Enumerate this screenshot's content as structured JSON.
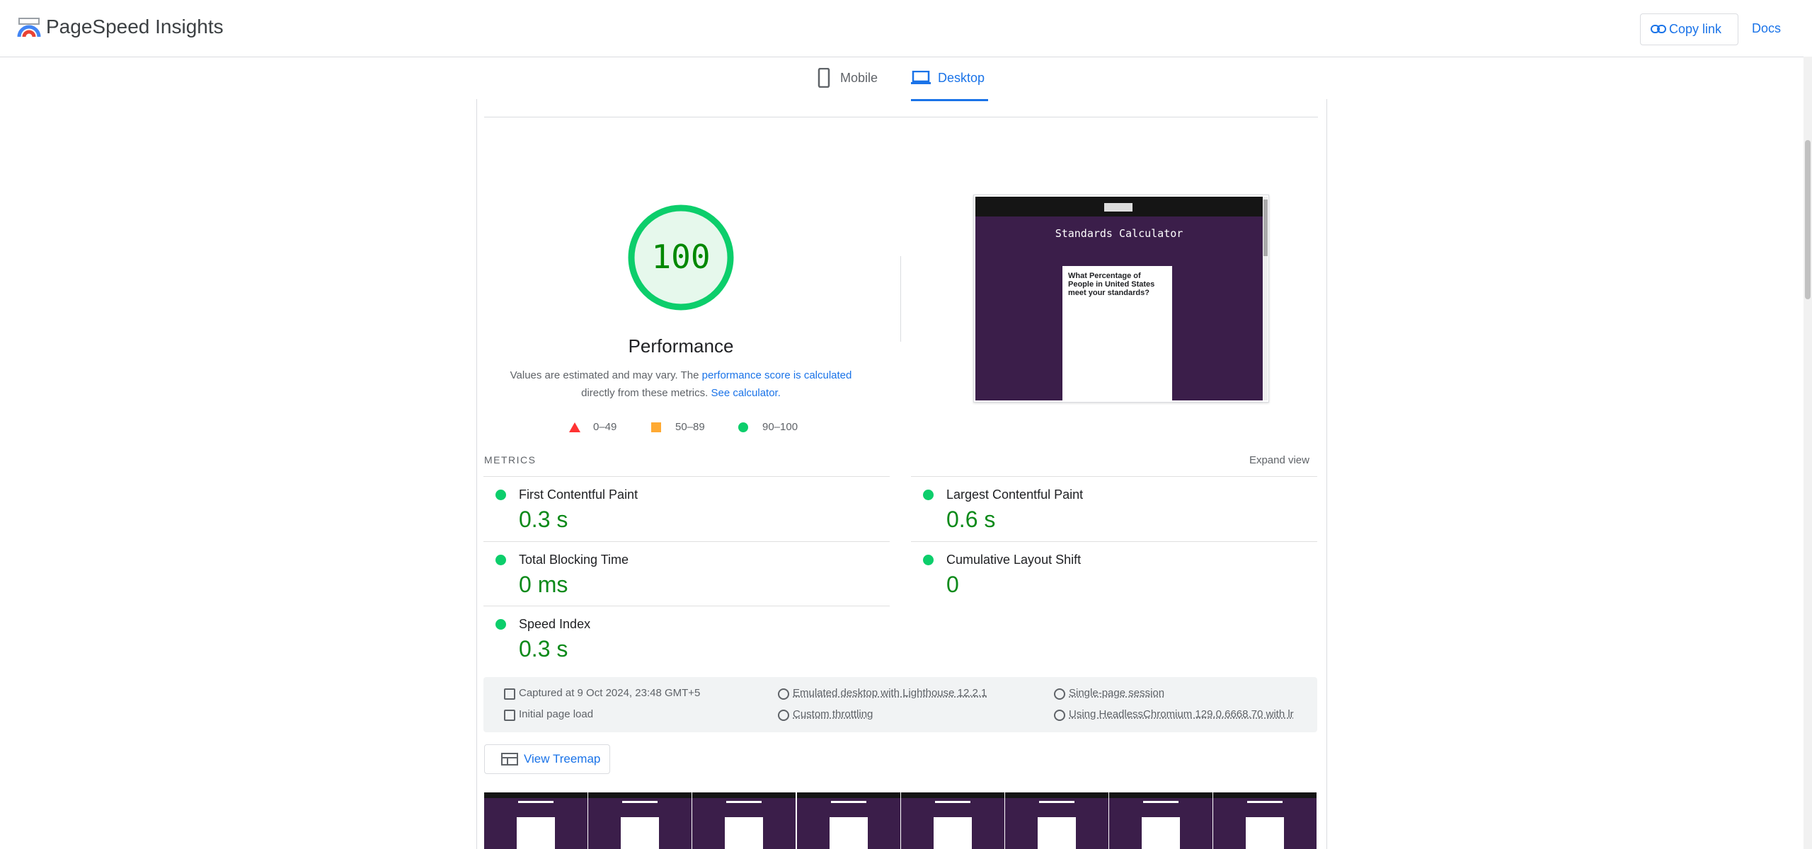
{
  "header": {
    "title": "PageSpeed Insights",
    "copy_link": "Copy link",
    "docs": "Docs"
  },
  "tabs": [
    "Mobile",
    "Desktop"
  ],
  "performance": {
    "score": "100",
    "label": "Performance",
    "description": {
      "text1": "Values are estimated and may vary. The ",
      "link1": "performance score is calculated",
      "text2": "directly from these metrics. ",
      "link2": "See calculator."
    },
    "legend": [
      "0–49",
      "50–89",
      "90–100"
    ]
  },
  "screenshot": {
    "title": "Standards Calculator",
    "question": "What Percentage of People in United States meet your standards?"
  },
  "metrics": {
    "heading": "METRICS",
    "expand": "Expand view",
    "items": [
      {
        "label": "First Contentful Paint",
        "value": "0.3 s"
      },
      {
        "label": "Largest Contentful Paint",
        "value": "0.6 s"
      },
      {
        "label": "Total Blocking Time",
        "value": "0 ms"
      },
      {
        "label": "Cumulative Layout Shift",
        "value": "0"
      },
      {
        "label": "Speed Index",
        "value": "0.3 s"
      }
    ]
  },
  "info": [
    "Captured at 9 Oct 2024, 23:48 GMT+5",
    "Emulated desktop with Lighthouse 12.2.1",
    "Single-page session",
    "Initial page load",
    "Custom throttling",
    "Using HeadlessChromium 129.0.6668.70 with lr"
  ],
  "treemap": "View Treemap"
}
